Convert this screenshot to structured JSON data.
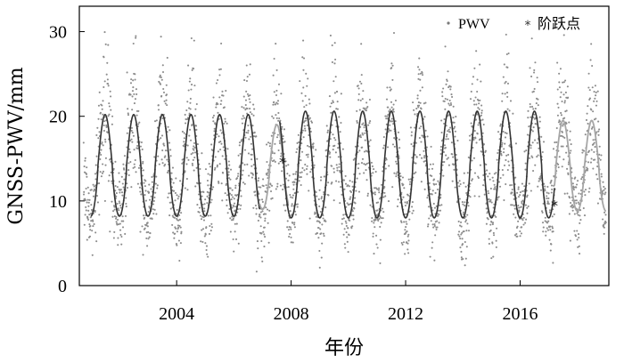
{
  "chart_data": {
    "type": "scatter",
    "title": "",
    "xlabel": "年份",
    "ylabel": "GNSS-PWV/mm",
    "xlim": [
      2000.6,
      2019.1
    ],
    "ylim": [
      0,
      33
    ],
    "x_ticks": [
      2004,
      2008,
      2012,
      2016
    ],
    "x_tick_labels": [
      "2004",
      "2008",
      "2012",
      "2016"
    ],
    "y_ticks": [
      0,
      10,
      20,
      30
    ],
    "y_tick_labels": [
      "0",
      "10",
      "20",
      "30"
    ],
    "grid": false,
    "legend_position": "top-right",
    "legend": [
      {
        "label": "PWV",
        "marker": "dot"
      },
      {
        "label": "阶跃点",
        "marker": "asterisk"
      }
    ],
    "colors": {
      "pwv_points": "#8c8c8c",
      "fit_dark": "#333333",
      "fit_light": "#a6a6a6",
      "axes": "#000000"
    },
    "series": [
      {
        "name": "PWV",
        "kind": "scatter",
        "annual_cycle": {
          "mean_mm": 14,
          "amplitude_mm": 6,
          "period_years": 1,
          "peak_month": "mid-year",
          "scatter_range_mm": [
            1,
            30
          ]
        }
      },
      {
        "name": "fit",
        "kind": "line",
        "segments": [
          {
            "x_range": [
              2001.0,
              2006.9
            ],
            "peak_max": 20.2,
            "trough_min": 8.2,
            "shade": "dark"
          },
          {
            "x_range": [
              2006.9,
              2007.9
            ],
            "peak_max": 19.0,
            "trough_min": 9.0,
            "shade": "light"
          },
          {
            "x_range": [
              2007.6,
              2017.2
            ],
            "peak_max": 20.6,
            "trough_min": 8.0,
            "shade": "dark"
          },
          {
            "x_range": [
              2017.2,
              2019.0
            ],
            "peak_max": 19.5,
            "trough_min": 8.8,
            "shade": "light"
          }
        ]
      },
      {
        "name": "阶跃点",
        "kind": "marker",
        "points": [
          {
            "x": 2007.7,
            "y": 14.7
          },
          {
            "x": 2017.2,
            "y": 9.6
          }
        ]
      }
    ]
  }
}
